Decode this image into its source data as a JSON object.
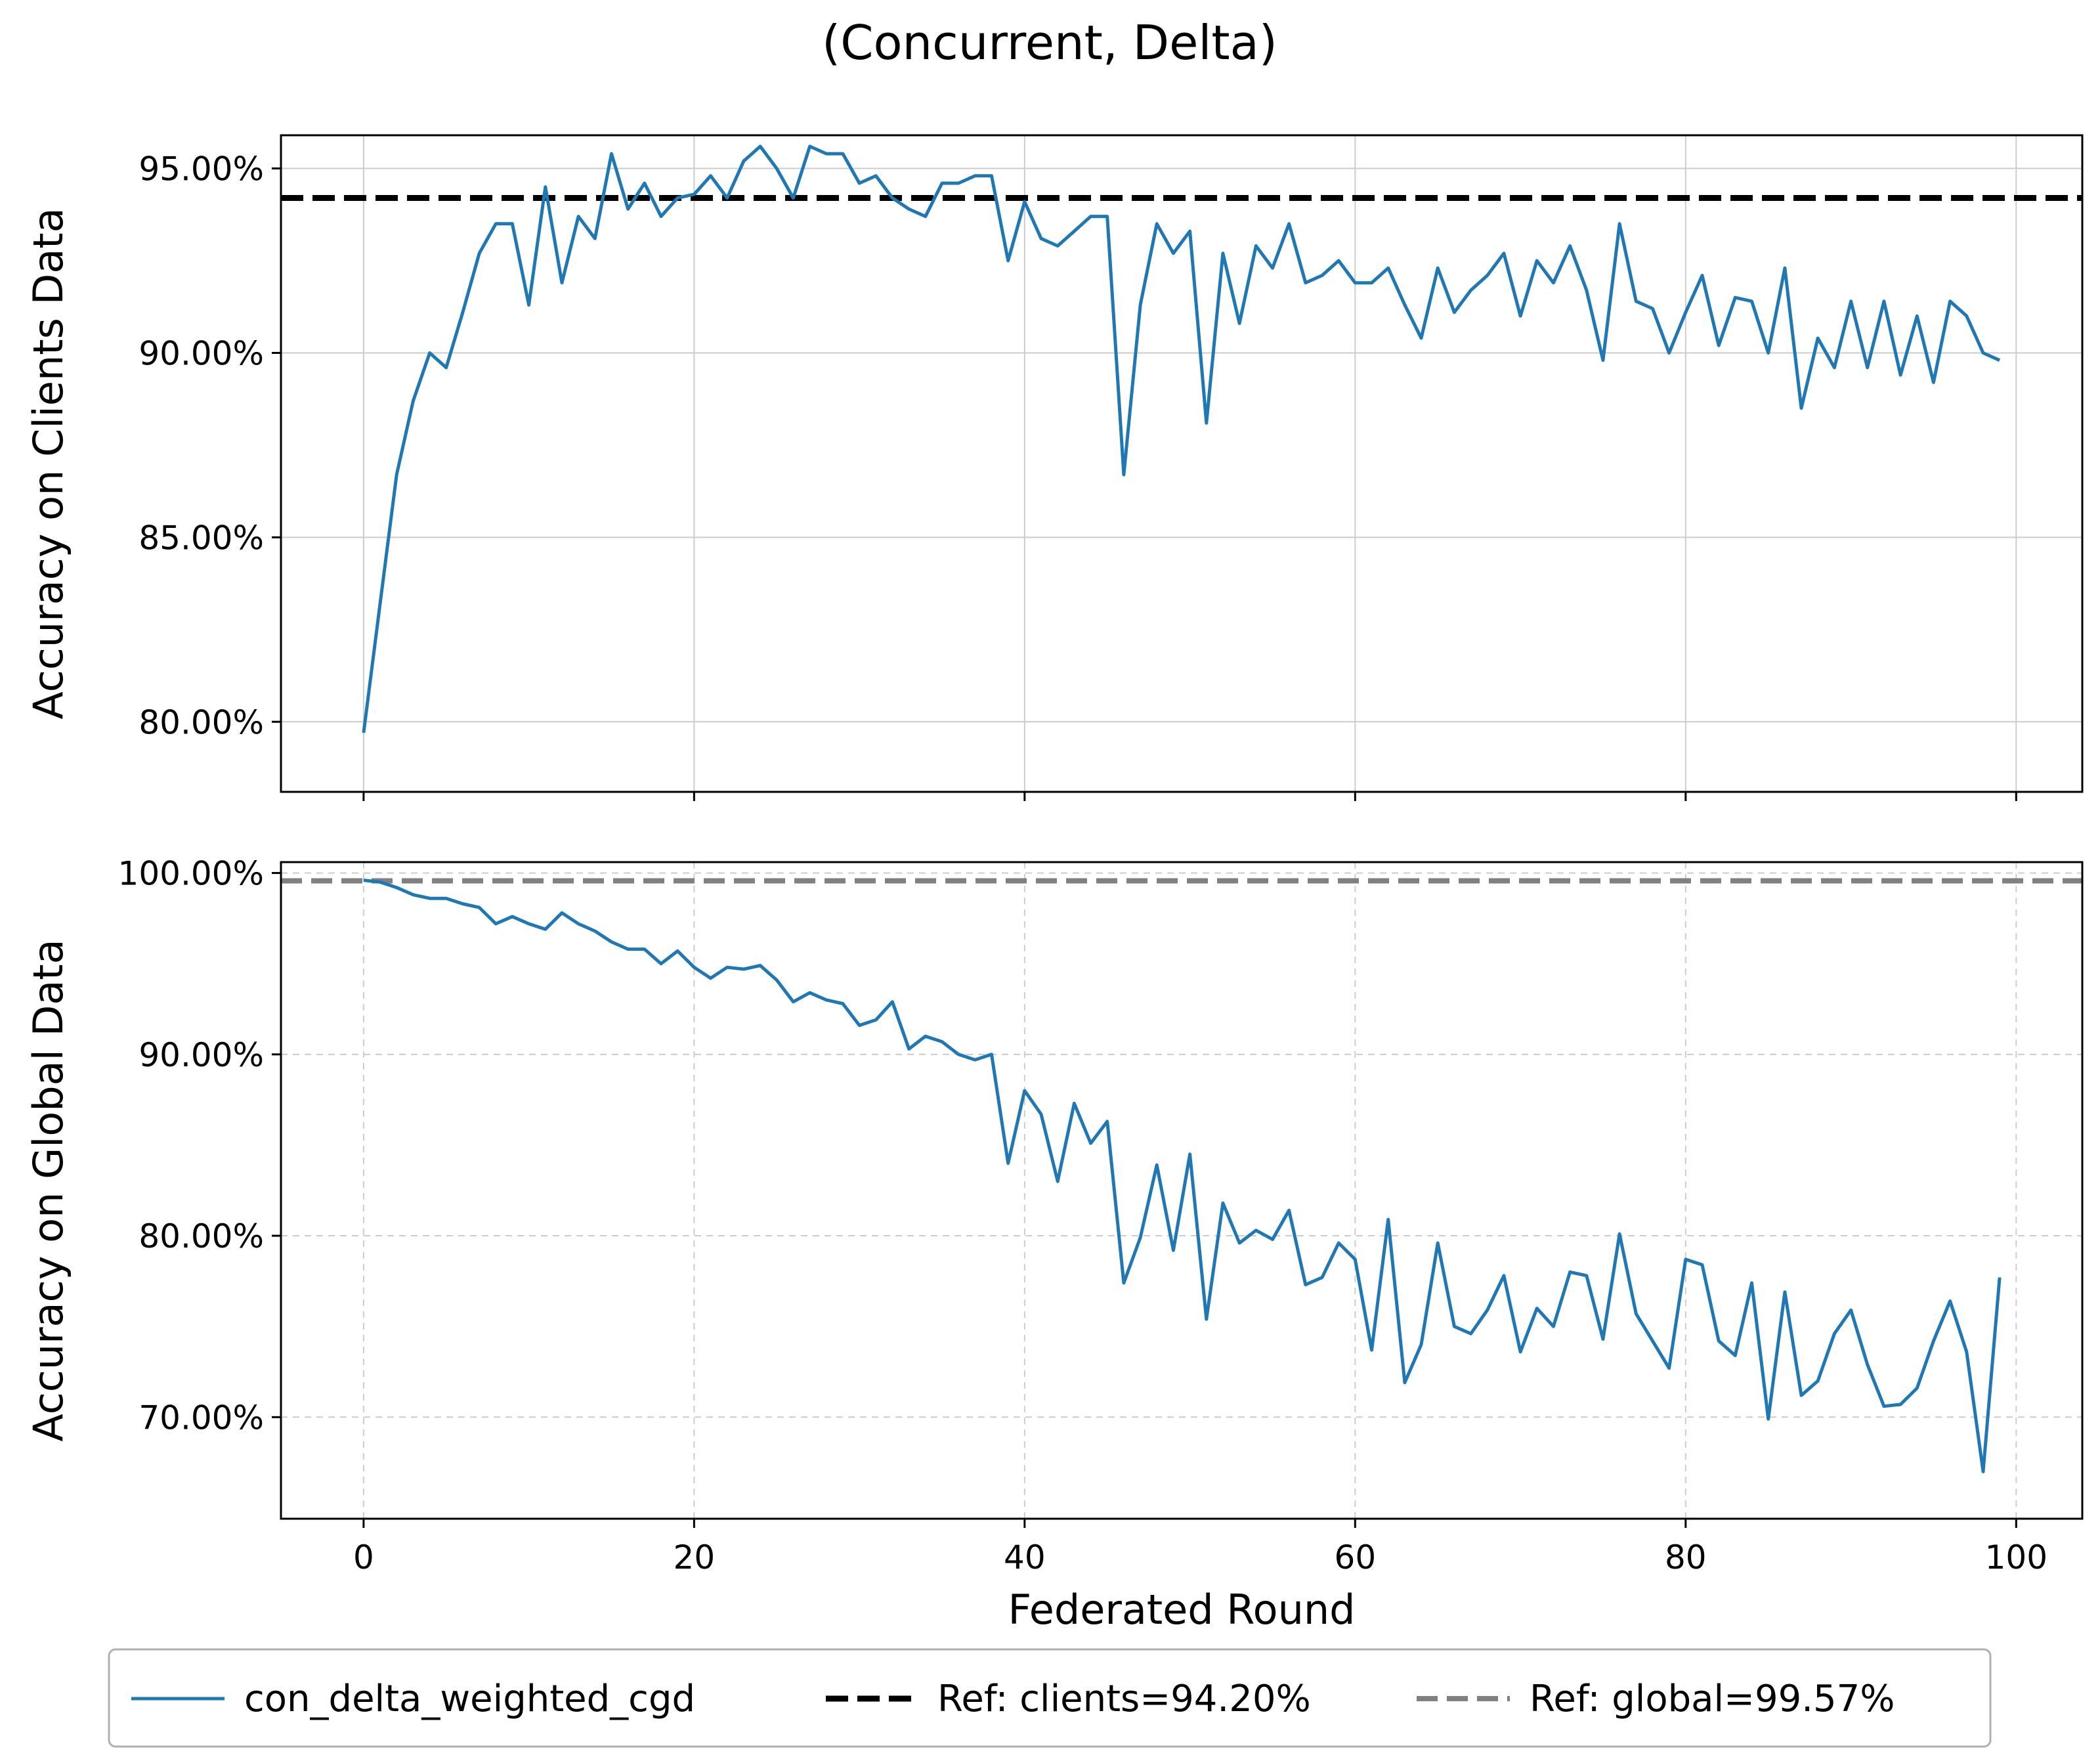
{
  "figure": {
    "title": "(Concurrent, Delta)",
    "legend": {
      "placement": "bottom-center",
      "entries": [
        {
          "label": "con_delta_weighted_cgd",
          "color": "#1f77b4",
          "style": "solid"
        },
        {
          "label": "Ref: clients=94.20%",
          "color": "#000000",
          "style": "dashed"
        },
        {
          "label": "Ref: global=99.57%",
          "color": "#808080",
          "style": "dashed"
        }
      ]
    }
  },
  "chart_data": [
    {
      "type": "line",
      "id": "clients",
      "ylabel": "Accuracy on Clients Data",
      "xlabel": "",
      "xlim": [
        -5,
        104
      ],
      "ylim": [
        78.1,
        95.9
      ],
      "xticks": [
        0,
        20,
        40,
        60,
        80,
        100
      ],
      "xtick_labels_visible": false,
      "yticks": [
        80,
        85,
        90,
        95
      ],
      "ytick_labels": [
        "80.00%",
        "85.00%",
        "90.00%",
        "95.00%"
      ],
      "grid": "solid",
      "reference": {
        "label": "Ref: clients=94.20%",
        "value": 94.2,
        "color": "#000000"
      },
      "series": [
        {
          "name": "con_delta_weighted_cgd",
          "color": "#1f77b4",
          "x": [
            0,
            1,
            2,
            3,
            4,
            5,
            6,
            7,
            8,
            9,
            10,
            11,
            12,
            13,
            14,
            15,
            16,
            17,
            18,
            19,
            20,
            21,
            22,
            23,
            24,
            25,
            26,
            27,
            28,
            29,
            30,
            31,
            32,
            33,
            34,
            35,
            36,
            37,
            38,
            39,
            40,
            41,
            42,
            43,
            44,
            45,
            46,
            47,
            48,
            49,
            50,
            51,
            52,
            53,
            54,
            55,
            56,
            57,
            58,
            59,
            60,
            61,
            62,
            63,
            64,
            65,
            66,
            67,
            68,
            69,
            70,
            71,
            72,
            73,
            74,
            75,
            76,
            77,
            78,
            79,
            80,
            81,
            82,
            83,
            84,
            85,
            86,
            87,
            88,
            89,
            90,
            91,
            92,
            93,
            94,
            95,
            96,
            97,
            98,
            99
          ],
          "values": [
            79.7,
            83.2,
            86.7,
            88.7,
            90.0,
            89.6,
            91.1,
            92.7,
            93.5,
            93.5,
            91.3,
            94.5,
            91.9,
            93.7,
            93.1,
            95.4,
            93.9,
            94.6,
            93.7,
            94.2,
            94.3,
            94.8,
            94.2,
            95.2,
            95.6,
            95.0,
            94.2,
            95.6,
            95.4,
            95.4,
            94.6,
            94.8,
            94.2,
            93.9,
            93.7,
            94.6,
            94.6,
            94.8,
            94.8,
            92.5,
            94.1,
            93.1,
            92.9,
            93.3,
            93.7,
            93.7,
            86.7,
            91.3,
            93.5,
            92.7,
            93.3,
            88.1,
            92.7,
            90.8,
            92.9,
            92.3,
            93.5,
            91.9,
            92.1,
            92.5,
            91.9,
            91.9,
            92.3,
            91.3,
            90.4,
            92.3,
            91.1,
            91.7,
            92.1,
            92.7,
            91.0,
            92.5,
            91.9,
            92.9,
            91.7,
            89.8,
            93.5,
            91.4,
            91.2,
            90.0,
            91.1,
            92.1,
            90.2,
            91.5,
            91.4,
            90.0,
            92.3,
            88.5,
            90.4,
            89.6,
            91.4,
            89.6,
            91.4,
            89.4,
            91.0,
            89.2,
            91.4,
            91.0,
            90.0,
            89.8
          ]
        }
      ]
    },
    {
      "type": "line",
      "id": "global",
      "ylabel": "Accuracy on Global Data",
      "xlabel": "Federated Round",
      "xlim": [
        -5,
        104
      ],
      "ylim": [
        64.4,
        100.6
      ],
      "xticks": [
        0,
        20,
        40,
        60,
        80,
        100
      ],
      "xtick_labels": [
        "0",
        "20",
        "40",
        "60",
        "80",
        "100"
      ],
      "yticks": [
        70,
        80,
        90,
        100
      ],
      "ytick_labels": [
        "70.00%",
        "80.00%",
        "90.00%",
        "100.00%"
      ],
      "grid": "dashed",
      "reference": {
        "label": "Ref: global=99.57%",
        "value": 99.57,
        "color": "#808080"
      },
      "series": [
        {
          "name": "con_delta_weighted_cgd",
          "color": "#1f77b4",
          "x": [
            0,
            1,
            2,
            3,
            4,
            5,
            6,
            7,
            8,
            9,
            10,
            11,
            12,
            13,
            14,
            15,
            16,
            17,
            18,
            19,
            20,
            21,
            22,
            23,
            24,
            25,
            26,
            27,
            28,
            29,
            30,
            31,
            32,
            33,
            34,
            35,
            36,
            37,
            38,
            39,
            40,
            41,
            42,
            43,
            44,
            45,
            46,
            47,
            48,
            49,
            50,
            51,
            52,
            53,
            54,
            55,
            56,
            57,
            58,
            59,
            60,
            61,
            62,
            63,
            64,
            65,
            66,
            67,
            68,
            69,
            70,
            71,
            72,
            73,
            74,
            75,
            76,
            77,
            78,
            79,
            80,
            81,
            82,
            83,
            84,
            85,
            86,
            87,
            88,
            89,
            90,
            91,
            92,
            93,
            94,
            95,
            96,
            97,
            98,
            99
          ],
          "values": [
            99.6,
            99.5,
            99.2,
            98.8,
            98.6,
            98.6,
            98.3,
            98.1,
            97.2,
            97.6,
            97.2,
            96.9,
            97.8,
            97.2,
            96.8,
            96.2,
            95.8,
            95.8,
            95.0,
            95.7,
            94.8,
            94.2,
            94.8,
            94.7,
            94.9,
            94.1,
            92.9,
            93.4,
            93.0,
            92.8,
            91.6,
            91.9,
            92.9,
            90.3,
            91.0,
            90.7,
            90.0,
            89.7,
            90.0,
            84.0,
            88.0,
            86.7,
            83.0,
            87.3,
            85.1,
            86.3,
            77.4,
            79.9,
            83.9,
            79.2,
            84.5,
            75.4,
            81.8,
            79.6,
            80.3,
            79.8,
            81.4,
            77.3,
            77.7,
            79.6,
            78.7,
            73.7,
            80.9,
            71.9,
            74.0,
            79.6,
            75.0,
            74.6,
            75.9,
            77.8,
            73.6,
            76.0,
            75.0,
            78.0,
            77.8,
            74.3,
            80.1,
            75.7,
            74.2,
            72.7,
            78.7,
            78.4,
            74.2,
            73.4,
            77.4,
            69.9,
            76.9,
            71.2,
            72.0,
            74.6,
            75.9,
            72.9,
            70.6,
            70.7,
            71.6,
            74.2,
            76.4,
            73.6,
            67.0,
            77.7
          ]
        }
      ]
    }
  ]
}
